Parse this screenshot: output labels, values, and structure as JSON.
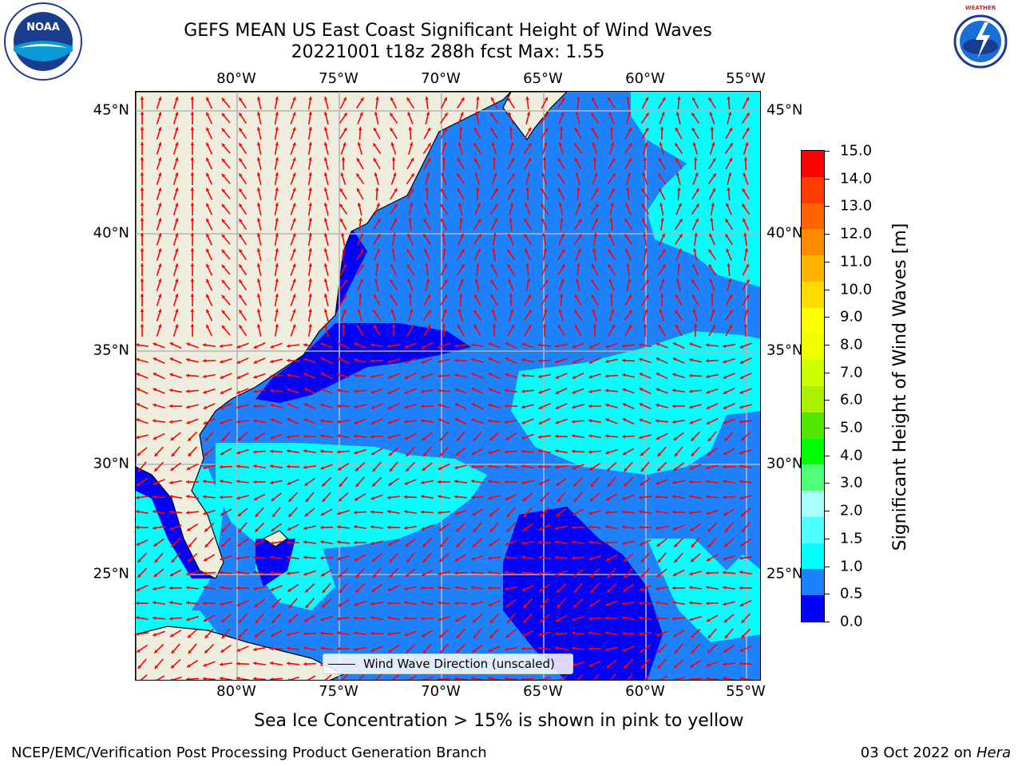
{
  "title": {
    "line1": "GEFS MEAN US East Coast Significant Height of Wind Waves",
    "line2": "20221001 t18z 288h fcst   Max: 1.55"
  },
  "map": {
    "lon_ticks": [
      "80°W",
      "75°W",
      "70°W",
      "65°W",
      "60°W",
      "55°W"
    ],
    "lat_ticks": [
      "45°N",
      "40°N",
      "35°N",
      "30°N",
      "25°N"
    ],
    "legend_label": "Wind Wave Direction (unscaled)",
    "colors": {
      "land": "#efedde",
      "band_0_05": "#0000ff",
      "band_05_10": "#1e82ff",
      "band_10_15": "#00ffff",
      "arrow": "#ff0000",
      "grid": "#b4b4b4"
    }
  },
  "colorbar": {
    "ticks": [
      "15.0",
      "14.0",
      "13.0",
      "12.0",
      "11.0",
      "10.0",
      "9.0",
      "8.0",
      "7.0",
      "6.0",
      "5.0",
      "4.0",
      "3.0",
      "2.0",
      "1.5",
      "1.0",
      "0.5",
      "0.0"
    ],
    "colors_bottom_to_top": [
      "#0000ff",
      "#1e82ff",
      "#00ffff",
      "#50ffff",
      "#aaffff",
      "#50ff78",
      "#00ff00",
      "#50e600",
      "#aaf000",
      "#ccff00",
      "#f0ff00",
      "#ffff00",
      "#ffdc00",
      "#ffb400",
      "#ff8c00",
      "#ff6400",
      "#ff3c00",
      "#ff0000"
    ],
    "label": "Significant Height of Wind Waves [m]"
  },
  "subnote": "Sea Ice Concentration > 15% is shown in pink to yellow",
  "footer": {
    "left": "NCEP/EMC/Verification Post Processing Product Generation Branch",
    "date": "03 Oct 2022 on ",
    "machine": "Hera"
  },
  "logos": {
    "noaa": "NOAA",
    "nws": "NATIONAL WEATHER SERVICE"
  }
}
